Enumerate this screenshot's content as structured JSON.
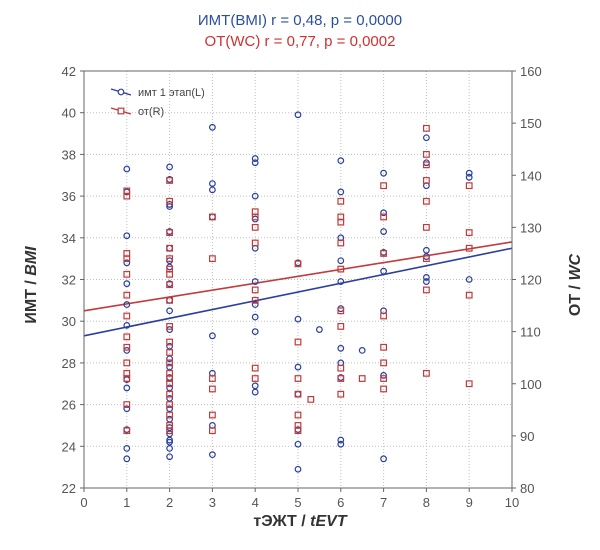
{
  "chart_data": {
    "type": "scatter",
    "title_lines": [
      {
        "text": "ИМТ(BMI) r = 0,48,  p = 0,0000",
        "color": "#2a4f9e"
      },
      {
        "text": "ОТ(WC) r = 0,77,  p = 0,0002",
        "color": "#d03030"
      }
    ],
    "xlabel": {
      "prefix": "тЭЖТ / ",
      "italic": "tEVT"
    },
    "ylabel_left": {
      "prefix": "ИМТ / ",
      "italic": "BMI"
    },
    "ylabel_right": {
      "prefix": "ОТ / ",
      "italic": "WC"
    },
    "xlim": [
      0,
      10
    ],
    "ylim_left": [
      22,
      42
    ],
    "ylim_right": [
      80,
      160
    ],
    "x_ticks": [
      "0",
      "1",
      "2",
      "3",
      "4",
      "5",
      "6",
      "7",
      "8",
      "9",
      "10"
    ],
    "y_ticks_left": [
      "22",
      "24",
      "26",
      "28",
      "30",
      "32",
      "34",
      "36",
      "38",
      "40",
      "42"
    ],
    "y_ticks_right": [
      "80",
      "90",
      "100",
      "110",
      "120",
      "130",
      "140",
      "150",
      "160"
    ],
    "grid": true,
    "legend_position": "top-left",
    "colors": {
      "bmi": "#2a3f9e",
      "wc": "#c23a3a",
      "grid": "#bfbfbf",
      "axis": "#666666"
    },
    "series": [
      {
        "name": "имт 1 этап(L)",
        "axis": "left",
        "marker": "circle",
        "color": "#2a3f9e",
        "x": [
          1,
          1,
          1,
          1,
          1,
          1,
          1,
          1,
          1,
          1,
          1,
          1,
          1,
          1,
          2,
          2,
          2,
          2,
          2,
          2,
          2,
          2,
          2,
          2,
          2,
          2,
          2,
          2,
          2,
          2,
          2,
          2,
          2,
          2,
          2,
          2,
          2,
          2,
          2,
          2,
          3,
          3,
          3,
          3,
          3,
          3,
          3,
          3,
          4,
          4,
          4,
          4,
          4,
          4,
          4,
          4,
          4,
          4,
          4,
          5,
          5,
          5,
          5,
          5,
          5,
          5,
          5,
          5.5,
          6,
          6,
          6,
          6,
          6,
          6,
          6,
          6,
          6,
          6,
          6,
          6.5,
          7,
          7,
          7,
          7,
          7,
          7,
          7,
          7,
          8,
          8,
          8,
          8,
          8,
          8,
          8,
          9,
          9,
          9
        ],
        "y": [
          37.3,
          36.2,
          34.1,
          32.8,
          31.8,
          30.8,
          29.8,
          28.6,
          27.2,
          26.8,
          25.8,
          24.8,
          23.9,
          23.4,
          37.4,
          36.8,
          35.6,
          34.3,
          33.5,
          32.6,
          31.8,
          31.0,
          30.5,
          29.6,
          28.8,
          28.2,
          27.8,
          27.3,
          26.8,
          26.3,
          25.8,
          25.3,
          24.9,
          24.6,
          24.2,
          23.9,
          23.5,
          35.5,
          32.9,
          24.3,
          39.3,
          36.6,
          36.3,
          35.0,
          29.3,
          27.5,
          25.0,
          23.6,
          37.8,
          37.6,
          36.0,
          34.9,
          33.5,
          31.9,
          30.8,
          30.2,
          29.5,
          26.9,
          26.6,
          39.9,
          32.8,
          30.1,
          27.8,
          26.5,
          24.8,
          24.1,
          22.9,
          29.6,
          37.7,
          36.2,
          34.0,
          32.9,
          31.9,
          30.6,
          28.7,
          28.0,
          27.3,
          24.3,
          24.1,
          28.6,
          37.1,
          35.2,
          34.3,
          33.3,
          32.4,
          30.5,
          27.4,
          23.4,
          38.8,
          37.6,
          36.5,
          33.4,
          33.1,
          32.1,
          31.9,
          37.1,
          36.9,
          32.0
        ]
      },
      {
        "name": "от(R)",
        "axis": "right",
        "marker": "square",
        "color": "#c23a3a",
        "x": [
          1,
          1,
          1,
          1,
          1,
          1,
          1,
          1,
          1,
          1,
          1,
          1,
          1,
          1,
          2,
          2,
          2,
          2,
          2,
          2,
          2,
          2,
          2,
          2,
          2,
          2,
          2,
          2,
          2,
          2,
          2,
          2,
          2,
          2,
          2,
          3,
          3,
          3,
          3,
          3,
          3,
          4,
          4,
          4,
          4,
          4,
          4,
          4,
          4,
          5,
          5,
          5,
          5,
          5,
          5,
          5,
          5.3,
          6,
          6,
          6,
          6,
          6,
          6,
          6,
          6,
          6,
          6,
          6.5,
          7,
          7,
          7,
          7,
          7,
          7,
          7,
          7,
          8,
          8,
          8,
          8,
          8,
          8,
          8,
          8,
          8,
          9,
          9,
          9,
          9,
          9
        ],
        "y": [
          137,
          136,
          125,
          124,
          121,
          117,
          113,
          109,
          107,
          104,
          102,
          101,
          96,
          91,
          139,
          135,
          129,
          126,
          124,
          122,
          121,
          119,
          116,
          111,
          108,
          106,
          104,
          102,
          101,
          100,
          98,
          96,
          94,
          92,
          91,
          132,
          124,
          101,
          99,
          94,
          91,
          133,
          132,
          130,
          127,
          118,
          116,
          103,
          101,
          123,
          108,
          101,
          98,
          94,
          92,
          91,
          97,
          135,
          132,
          131,
          127,
          122,
          114,
          111,
          103,
          101,
          98,
          101,
          138,
          132,
          125,
          113,
          107,
          104,
          101,
          99,
          149,
          144,
          142,
          139,
          135,
          130,
          124,
          118,
          102,
          138,
          129,
          126,
          117,
          100
        ]
      }
    ],
    "trendlines": [
      {
        "series": "имт 1 этап(L)",
        "axis": "left",
        "x": [
          0,
          10
        ],
        "y": [
          29.3,
          33.5
        ],
        "color": "#2a3f9e"
      },
      {
        "series": "от(R)",
        "axis": "right",
        "x": [
          0,
          10
        ],
        "y": [
          114.0,
          127.2
        ],
        "color": "#c23a3a"
      }
    ]
  }
}
